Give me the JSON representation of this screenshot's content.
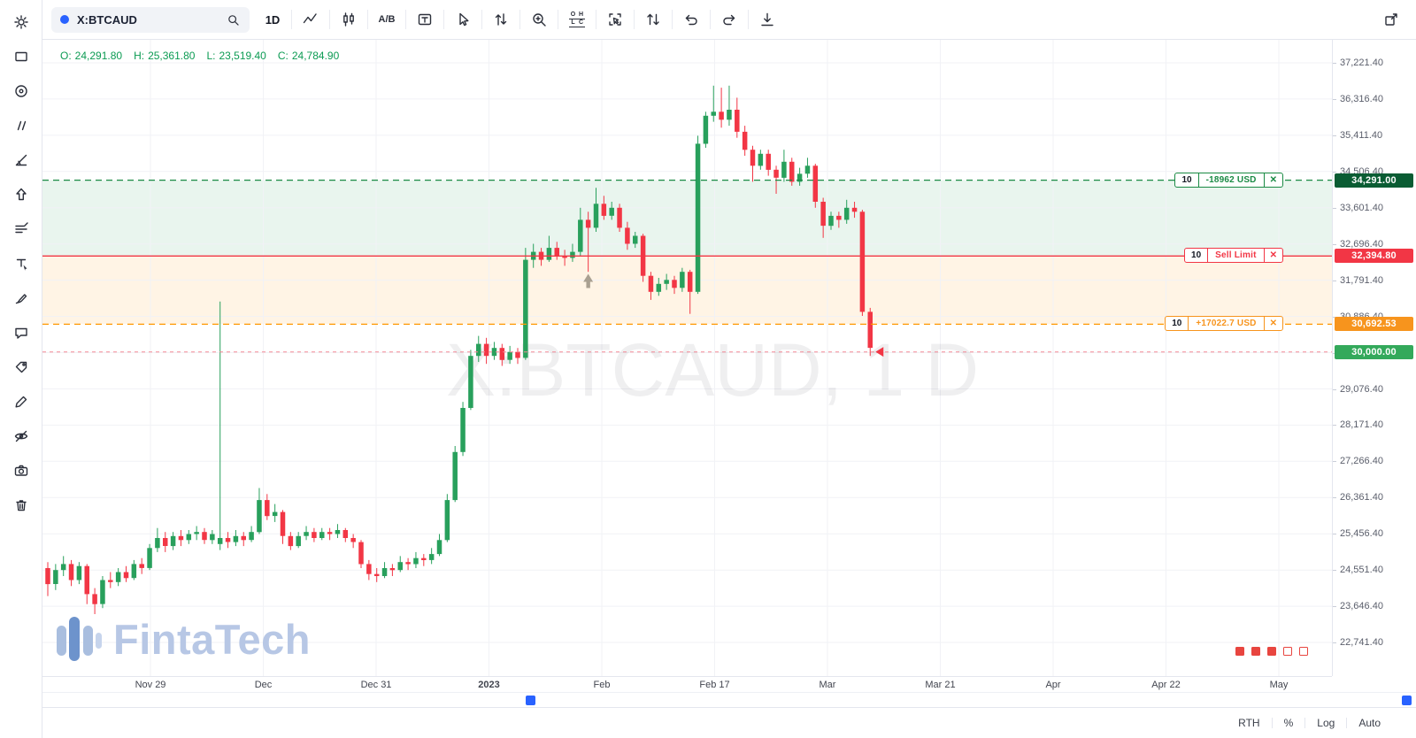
{
  "toolbar": {
    "symbol": "X:BTCAUD",
    "timeframe": "1D",
    "compare_label": "A/B",
    "ohlc_icon": {
      "o": "O",
      "h": "H",
      "l": "L",
      "c": "C"
    },
    "icon_names": [
      "search-icon",
      "line-style-icon",
      "chart-type-icon",
      "compare-icon",
      "template-icon",
      "cursor-icon",
      "swap-arrows-icon",
      "zoom-in-icon",
      "ohlc-icon",
      "select-icon",
      "scale-arrows-icon",
      "undo-icon",
      "redo-icon",
      "save-icon",
      "fullscreen-icon"
    ]
  },
  "sidebar": {
    "tool_names": [
      "settings",
      "rectangle-tool",
      "ellipse-tool",
      "brush-tool",
      "trend-angle-tool",
      "arrow-tool",
      "indicators",
      "text-tool",
      "pen-tool",
      "comment-tool",
      "price-tag-tool",
      "pencil-tool",
      "hide-drawings",
      "snapshot",
      "remove-drawings"
    ]
  },
  "legend": {
    "open_label": "O:",
    "open": "24,291.80",
    "high_label": "H:",
    "high": "25,361.80",
    "low_label": "L:",
    "low": "23,519.40",
    "close_label": "C:",
    "close": "24,784.90"
  },
  "watermark": "X:BTCAUD, 1 D",
  "logo_text": "FintaTech",
  "orders": [
    {
      "qty": "10",
      "label": "-18962 USD",
      "close": "✕",
      "price": 34291.0,
      "accent": "#1a8a44"
    },
    {
      "qty": "10",
      "label": "Sell Limit",
      "close": "✕",
      "price": 32394.8,
      "accent": "#f23645"
    },
    {
      "qty": "10",
      "label": "+17022.7 USD",
      "close": "✕",
      "price": 30692.53,
      "accent": "#f7941d"
    }
  ],
  "price_badges": [
    {
      "label": "34,291.00",
      "price": 34291.0,
      "bg": "#0a5c33"
    },
    {
      "label": "32,394.80",
      "price": 32394.8,
      "bg": "#f23645"
    },
    {
      "label": "30,692.53",
      "price": 30692.53,
      "bg": "#f7941d"
    },
    {
      "label": "30,000.00",
      "price": 30000.0,
      "bg": "#33a95b"
    }
  ],
  "levels": [
    {
      "price": 34291.0,
      "color": "#1a8a44",
      "dash": "7 5",
      "width": 1.3
    },
    {
      "price": 32394.8,
      "color": "#f23645",
      "dash": "",
      "width": 1.4
    },
    {
      "price": 30692.53,
      "color": "#ff9800",
      "dash": "7 5",
      "width": 1.3
    },
    {
      "price": 30000.0,
      "color": "#f48a96",
      "dash": "4 4",
      "width": 1
    }
  ],
  "zones": [
    {
      "from": 34291.0,
      "to": 32394.8,
      "color": "rgba(42,154,84,0.10)"
    },
    {
      "from": 32394.8,
      "to": 30692.53,
      "color": "rgba(255,152,0,0.10)"
    }
  ],
  "markers": [
    {
      "type": "arrow-up",
      "candle_index": 69,
      "price": 31950,
      "color": "#a9a091"
    },
    {
      "type": "arrow-left",
      "candle_index": 105,
      "price": 30000,
      "color": "#f23645"
    }
  ],
  "status_squares": [
    "filled",
    "filled",
    "filled",
    "outlined",
    "outlined"
  ],
  "colors": {
    "square": "#e8453f",
    "accent_blue": "#2962ff"
  },
  "price_axis": {
    "ticks": [
      {
        "label": "37,221.40",
        "value": 37221.4
      },
      {
        "label": "36,316.40",
        "value": 36316.4
      },
      {
        "label": "35,411.40",
        "value": 35411.4
      },
      {
        "label": "34,506.40",
        "value": 34506.4
      },
      {
        "label": "33,601.40",
        "value": 33601.4
      },
      {
        "label": "32,696.40",
        "value": 32696.4
      },
      {
        "label": "31,791.40",
        "value": 31791.4
      },
      {
        "label": "30,886.40",
        "value": 30886.4
      },
      {
        "label": "29,981.40",
        "value": 29981.4
      },
      {
        "label": "29,076.40",
        "value": 29076.4
      },
      {
        "label": "28,171.40",
        "value": 28171.4
      },
      {
        "label": "27,266.40",
        "value": 27266.4
      },
      {
        "label": "26,361.40",
        "value": 26361.4
      },
      {
        "label": "25,456.40",
        "value": 25456.4
      },
      {
        "label": "24,551.40",
        "value": 24551.4
      },
      {
        "label": "23,646.40",
        "value": 23646.4
      },
      {
        "label": "22,741.40",
        "value": 22741.4
      }
    ]
  },
  "time_axis": {
    "labels": [
      {
        "text": "Nov 29"
      },
      {
        "text": "Dec"
      },
      {
        "text": "Dec 31"
      },
      {
        "text": "2023",
        "bold": true
      },
      {
        "text": "Feb"
      },
      {
        "text": "Feb 17"
      },
      {
        "text": "Mar"
      },
      {
        "text": "Mar 21"
      },
      {
        "text": "Apr"
      },
      {
        "text": "Apr 22"
      },
      {
        "text": "May"
      }
    ]
  },
  "bottom_bar": {
    "rth": "RTH",
    "percent": "%",
    "log": "Log",
    "auto": "Auto"
  },
  "chart_data": {
    "type": "candlestick",
    "symbol": "X:BTCAUD",
    "interval": "1D",
    "start_date": "2022-11-24",
    "note": "one candle per day, estimated from pixels",
    "up_color": "#28a05c",
    "down_color": "#f23645",
    "ylim": [
      22741.4,
      37221.4
    ],
    "ohlc_format": [
      "open",
      "high",
      "low",
      "close"
    ],
    "candles": [
      [
        24600,
        24750,
        23900,
        24200
      ],
      [
        24200,
        24700,
        24050,
        24550
      ],
      [
        24550,
        24900,
        24400,
        24700
      ],
      [
        24700,
        24800,
        24150,
        24300
      ],
      [
        24300,
        24750,
        24200,
        24650
      ],
      [
        24650,
        24700,
        23700,
        23950
      ],
      [
        23950,
        24100,
        23450,
        23700
      ],
      [
        23700,
        24400,
        23600,
        24300
      ],
      [
        24300,
        24500,
        24100,
        24250
      ],
      [
        24250,
        24600,
        24150,
        24500
      ],
      [
        24500,
        24650,
        24250,
        24350
      ],
      [
        24350,
        24800,
        24300,
        24700
      ],
      [
        24700,
        24850,
        24450,
        24600
      ],
      [
        24600,
        25200,
        24550,
        25100
      ],
      [
        25100,
        25600,
        25000,
        25350
      ],
      [
        25350,
        25500,
        25000,
        25150
      ],
      [
        25150,
        25500,
        25050,
        25400
      ],
      [
        25400,
        25550,
        25150,
        25300
      ],
      [
        25300,
        25550,
        25200,
        25450
      ],
      [
        25450,
        25650,
        25300,
        25500
      ],
      [
        25500,
        25600,
        25200,
        25300
      ],
      [
        25300,
        25550,
        25200,
        25450
      ],
      [
        25200,
        31260,
        25050,
        25350
      ],
      [
        25350,
        25500,
        25100,
        25250
      ],
      [
        25250,
        25550,
        25150,
        25400
      ],
      [
        25400,
        25500,
        25150,
        25300
      ],
      [
        25300,
        25650,
        25250,
        25500
      ],
      [
        25500,
        26600,
        25450,
        26300
      ],
      [
        26300,
        26450,
        25800,
        25900
      ],
      [
        25900,
        26200,
        25750,
        26000
      ],
      [
        26000,
        26050,
        25200,
        25400
      ],
      [
        25400,
        25500,
        25050,
        25150
      ],
      [
        25150,
        25500,
        25100,
        25400
      ],
      [
        25400,
        25650,
        25300,
        25500
      ],
      [
        25500,
        25600,
        25250,
        25350
      ],
      [
        25350,
        25600,
        25300,
        25500
      ],
      [
        25500,
        25600,
        25300,
        25450
      ],
      [
        25450,
        25700,
        25350,
        25550
      ],
      [
        25550,
        25600,
        25250,
        25350
      ],
      [
        25350,
        25450,
        25100,
        25250
      ],
      [
        25250,
        25300,
        24600,
        24700
      ],
      [
        24700,
        24800,
        24300,
        24450
      ],
      [
        24450,
        24600,
        24250,
        24400
      ],
      [
        24400,
        24750,
        24350,
        24600
      ],
      [
        24600,
        24700,
        24400,
        24550
      ],
      [
        24550,
        24900,
        24500,
        24750
      ],
      [
        24750,
        24850,
        24550,
        24700
      ],
      [
        24700,
        25000,
        24600,
        24850
      ],
      [
        24850,
        24950,
        24650,
        24800
      ],
      [
        24800,
        25100,
        24700,
        24950
      ],
      [
        24950,
        25450,
        24900,
        25300
      ],
      [
        25300,
        26450,
        25250,
        26300
      ],
      [
        26300,
        27650,
        26250,
        27500
      ],
      [
        27500,
        28750,
        27400,
        28600
      ],
      [
        28600,
        30050,
        28550,
        29900
      ],
      [
        29900,
        30400,
        29750,
        30200
      ],
      [
        30200,
        30350,
        29700,
        29900
      ],
      [
        29900,
        30250,
        29800,
        30100
      ],
      [
        30100,
        30200,
        29650,
        29800
      ],
      [
        29800,
        30150,
        29700,
        30000
      ],
      [
        30000,
        30100,
        29700,
        29850
      ],
      [
        29850,
        32600,
        29800,
        32300
      ],
      [
        32300,
        32700,
        32100,
        32500
      ],
      [
        32500,
        32600,
        32150,
        32300
      ],
      [
        32300,
        32900,
        32250,
        32600
      ],
      [
        32600,
        32750,
        32300,
        32400
      ],
      [
        32400,
        32550,
        32150,
        32350
      ],
      [
        32350,
        32700,
        32250,
        32500
      ],
      [
        32500,
        33600,
        32400,
        33300
      ],
      [
        33300,
        33500,
        32000,
        33100
      ],
      [
        33100,
        34100,
        33000,
        33700
      ],
      [
        33700,
        33900,
        33300,
        33400
      ],
      [
        33400,
        33750,
        33300,
        33600
      ],
      [
        33600,
        33700,
        33000,
        33100
      ],
      [
        33100,
        33250,
        32550,
        32700
      ],
      [
        32700,
        33000,
        32600,
        32900
      ],
      [
        32900,
        32950,
        31750,
        31900
      ],
      [
        31900,
        32000,
        31300,
        31500
      ],
      [
        31500,
        31850,
        31400,
        31700
      ],
      [
        31700,
        31950,
        31550,
        31800
      ],
      [
        31800,
        31900,
        31450,
        31600
      ],
      [
        31600,
        32100,
        31500,
        32000
      ],
      [
        32000,
        32050,
        30950,
        31500
      ],
      [
        31500,
        35400,
        31450,
        35200
      ],
      [
        35200,
        36000,
        35100,
        35900
      ],
      [
        35900,
        36650,
        35750,
        36000
      ],
      [
        36000,
        36600,
        35600,
        35800
      ],
      [
        35800,
        36650,
        35650,
        36050
      ],
      [
        36050,
        36350,
        35350,
        35500
      ],
      [
        35500,
        35650,
        34900,
        35050
      ],
      [
        35050,
        35150,
        34250,
        34650
      ],
      [
        34650,
        35050,
        34550,
        34950
      ],
      [
        34950,
        35050,
        34400,
        34550
      ],
      [
        34550,
        34650,
        33950,
        34350
      ],
      [
        34350,
        35050,
        34250,
        34750
      ],
      [
        34750,
        34850,
        34150,
        34250
      ],
      [
        34250,
        34600,
        34150,
        34450
      ],
      [
        34450,
        34850,
        34350,
        34650
      ],
      [
        34650,
        34700,
        33600,
        33750
      ],
      [
        33750,
        33850,
        32850,
        33150
      ],
      [
        33150,
        33500,
        33050,
        33400
      ],
      [
        33400,
        33500,
        33100,
        33300
      ],
      [
        33300,
        33800,
        33200,
        33600
      ],
      [
        33600,
        33750,
        33350,
        33500
      ],
      [
        33500,
        33550,
        30900,
        31000
      ],
      [
        31000,
        31100,
        29900,
        30100
      ]
    ]
  }
}
